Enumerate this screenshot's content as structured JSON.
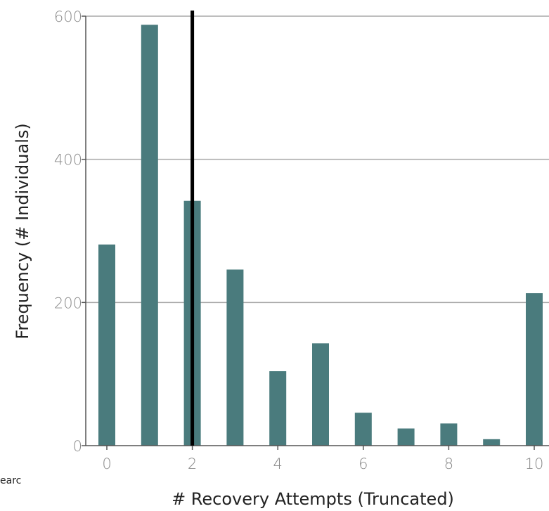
{
  "chart_data": {
    "type": "bar",
    "x": [
      0,
      1,
      2,
      3,
      4,
      5,
      6,
      7,
      8,
      9,
      10
    ],
    "values": [
      281,
      588,
      342,
      246,
      104,
      143,
      46,
      24,
      31,
      9,
      213
    ],
    "xlabel": "# Recovery Attempts (Truncated)",
    "ylabel": "Frequency (# Individuals)",
    "xticks": [
      0,
      2,
      4,
      6,
      8,
      10
    ],
    "xtick_labels": [
      "0",
      "2",
      "4",
      "6",
      "8",
      "10"
    ],
    "yticks": [
      0,
      200,
      400,
      600
    ],
    "ytick_labels": [
      "0",
      "200",
      "400",
      "600"
    ],
    "ylim": [
      0,
      600
    ],
    "xlim": [
      -0.5,
      10.3
    ],
    "grid": "horizontal",
    "reference_line_x": 2,
    "colors": {
      "bar": "#4a7b7d",
      "reference_line": "#000000",
      "grid": "#a8a8a8",
      "axis": "#555555"
    }
  },
  "fragment_text": "earc"
}
